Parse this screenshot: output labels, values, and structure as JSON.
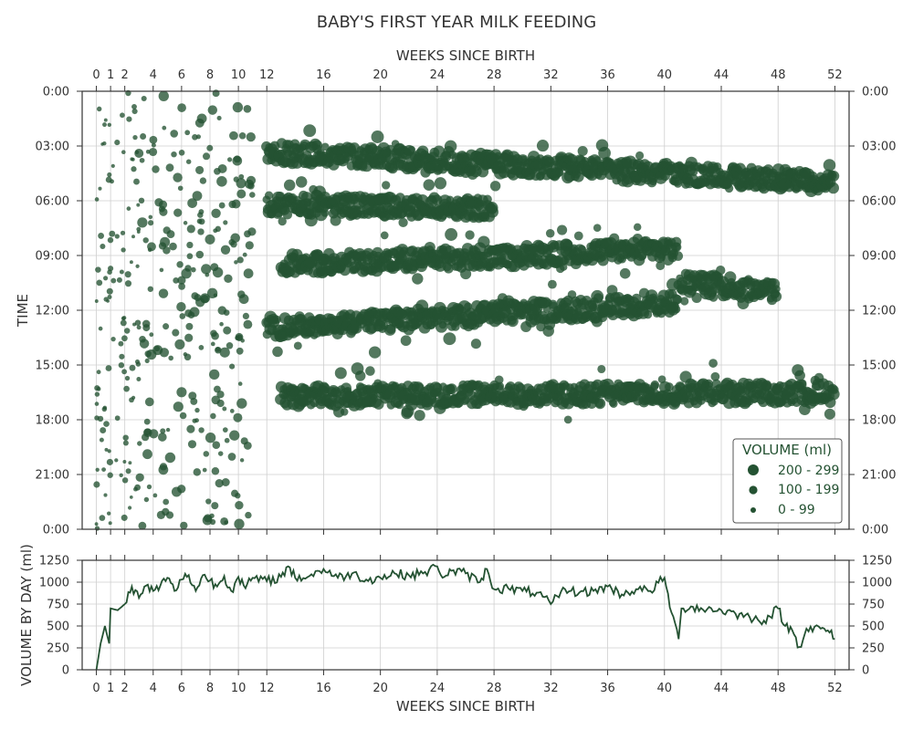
{
  "title": "BABY'S FIRST YEAR MILK FEEDING",
  "colors": {
    "marker": "#245232",
    "line": "#245232",
    "grid": "#cfcfcf",
    "axis": "#333333",
    "text": "#333333"
  },
  "chart_data": [
    {
      "type": "scatter",
      "xlabel_top": "WEEKS SINCE BIRTH",
      "ylabel": "TIME",
      "xlim": [
        -1,
        53
      ],
      "ylim": [
        0,
        24
      ],
      "x_ticks": [
        0,
        1,
        2,
        4,
        6,
        8,
        10,
        12,
        16,
        20,
        24,
        28,
        32,
        36,
        40,
        44,
        48,
        52
      ],
      "y_ticks": [
        "0:00",
        "03:00",
        "06:00",
        "09:00",
        "12:00",
        "15:00",
        "18:00",
        "21:00",
        "0:00"
      ],
      "y_tick_values": [
        24,
        21,
        18,
        15,
        12,
        9,
        6,
        3,
        0
      ],
      "y_ticks_right": [
        "0:00",
        "03:00",
        "06:00",
        "09:00",
        "12:00",
        "15:00",
        "18:00",
        "21:00",
        "0:00"
      ],
      "x_unit": "weeks since birth",
      "y_unit": "hours of day (0 at bottom, 24 at top, labeled 0:00 at both ends)",
      "legend": {
        "title": "VOLUME (ml)",
        "placement": "bottom-right",
        "entries": [
          "200 - 299",
          "100 - 199",
          "0 - 99"
        ]
      },
      "grid": true,
      "feeding_bands": [
        {
          "name": "",
          "x_start": 12,
          "x_end": 52,
          "y_start": 20.7,
          "y_end": 19.0,
          "size": "large"
        },
        {
          "name": "",
          "x_start": 12,
          "x_end": 28,
          "y_start": 17.8,
          "y_end": 17.6,
          "size": "large"
        },
        {
          "name": "",
          "x_start": 13,
          "x_end": 41,
          "y_start": 14.5,
          "y_end": 15.3,
          "size": "large"
        },
        {
          "name": "",
          "x_start": 41,
          "x_end": 48,
          "y_start": 13.6,
          "y_end": 13.0,
          "size": "large"
        },
        {
          "name": "",
          "x_start": 12,
          "x_end": 41,
          "y_start": 11.0,
          "y_end": 12.4,
          "size": "large"
        },
        {
          "name": "",
          "x_start": 13,
          "x_end": 52,
          "y_start": 7.3,
          "y_end": 7.5,
          "size": "large"
        }
      ],
      "early_scatter": {
        "x_start": 0,
        "x_end": 11,
        "y_start": 0,
        "y_end": 24,
        "size": "mixed"
      }
    },
    {
      "type": "line",
      "xlabel": "WEEKS SINCE BIRTH",
      "ylabel": "VOLUME BY DAY (ml)",
      "xlim": [
        -1,
        53
      ],
      "ylim": [
        0,
        1250
      ],
      "x_ticks": [
        0,
        1,
        2,
        4,
        6,
        8,
        10,
        12,
        16,
        20,
        24,
        28,
        32,
        36,
        40,
        44,
        48,
        52
      ],
      "y_ticks": [
        0,
        250,
        500,
        750,
        1000,
        1250
      ],
      "grid": true,
      "series": [
        {
          "name": "",
          "x": [
            0,
            0.3,
            0.6,
            0.9,
            1,
            1.5,
            2,
            2.5,
            3,
            3.5,
            4,
            4.5,
            5,
            5.5,
            6,
            6.5,
            7,
            7.5,
            8,
            8.5,
            9,
            9.5,
            10,
            10.5,
            11,
            12,
            13,
            13.5,
            14,
            15,
            16,
            17,
            18,
            19,
            20,
            21,
            22,
            23,
            24,
            24.5,
            25,
            26,
            27,
            27.5,
            28,
            29,
            30,
            31,
            32,
            33,
            34,
            35,
            36,
            37,
            38,
            39,
            40,
            40.5,
            41,
            41.2,
            42,
            43,
            44,
            45,
            46,
            47,
            48,
            48.5,
            49,
            49.5,
            50,
            51,
            51.5,
            52
          ],
          "y": [
            0,
            300,
            500,
            300,
            700,
            680,
            750,
            950,
            820,
            960,
            900,
            960,
            1050,
            900,
            1030,
            1080,
            900,
            1080,
            1020,
            950,
            1070,
            900,
            1060,
            930,
            1050,
            1010,
            1060,
            1180,
            1050,
            1070,
            1150,
            1050,
            1100,
            1030,
            1050,
            1100,
            1080,
            1100,
            1180,
            1060,
            1130,
            1100,
            1000,
            1150,
            920,
            930,
            900,
            880,
            750,
            920,
            880,
            900,
            950,
            860,
            920,
            900,
            1050,
            650,
            350,
            700,
            720,
            690,
            680,
            640,
            600,
            560,
            700,
            500,
            450,
            260,
            470,
            470,
            450,
            350
          ]
        }
      ]
    }
  ]
}
